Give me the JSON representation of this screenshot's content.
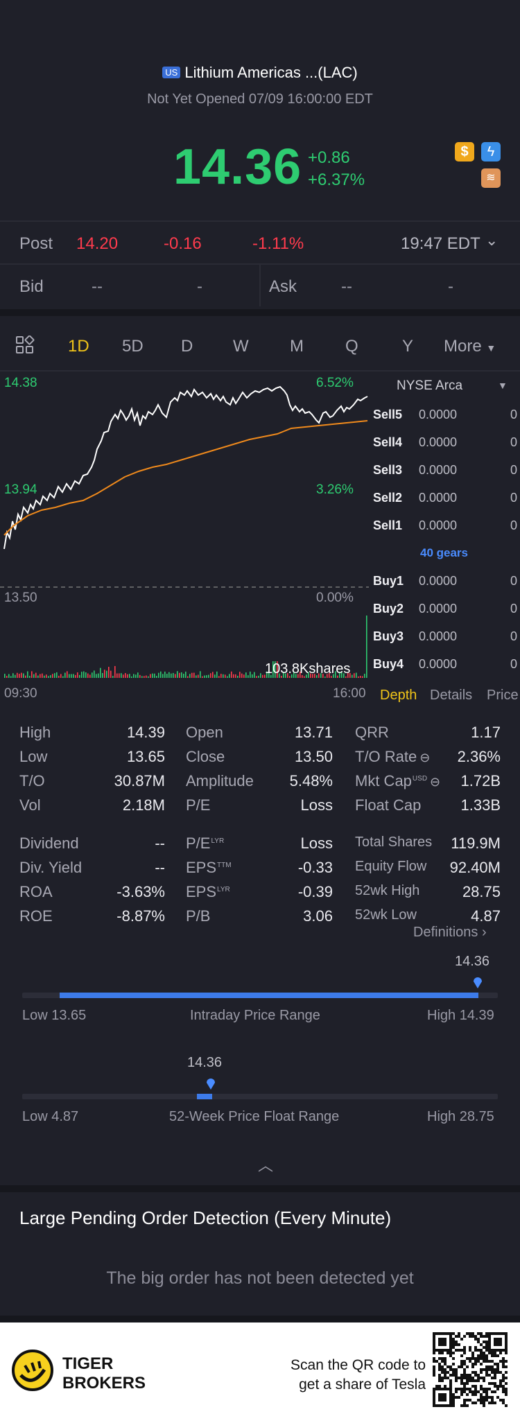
{
  "header": {
    "market_badge": "US",
    "stock_name": "Lithium Americas ...(LAC)",
    "status": "Not Yet Opened 07/09 16:00:00 EDT",
    "price": "14.36",
    "change": "+0.86",
    "change_pct": "+6.37%"
  },
  "post": {
    "label": "Post",
    "price": "14.20",
    "change": "-0.16",
    "change_pct": "-1.11%",
    "time": "19:47 EDT"
  },
  "bidask": {
    "bid_label": "Bid",
    "bid_price": "--",
    "bid_size": "-",
    "ask_label": "Ask",
    "ask_price": "--",
    "ask_size": "-"
  },
  "timeframes": [
    "1D",
    "5D",
    "D",
    "W",
    "M",
    "Q",
    "Y"
  ],
  "timeframe_more": "More",
  "chart": {
    "y_top": "14.38",
    "y_mid": "13.94",
    "y_base": "13.50",
    "pct_top": "6.52%",
    "pct_mid": "3.26%",
    "pct_base": "0.00%",
    "volume_label": "103.8Kshares",
    "x_start": "09:30",
    "x_end": "16:00"
  },
  "orderbook": {
    "exchange": "NYSE Arca",
    "gears": "40 gears",
    "sells": [
      {
        "name": "Sell5",
        "price": "0.0000",
        "vol": "0"
      },
      {
        "name": "Sell4",
        "price": "0.0000",
        "vol": "0"
      },
      {
        "name": "Sell3",
        "price": "0.0000",
        "vol": "0"
      },
      {
        "name": "Sell2",
        "price": "0.0000",
        "vol": "0"
      },
      {
        "name": "Sell1",
        "price": "0.0000",
        "vol": "0"
      }
    ],
    "buys": [
      {
        "name": "Buy1",
        "price": "0.0000",
        "vol": "0"
      },
      {
        "name": "Buy2",
        "price": "0.0000",
        "vol": "0"
      },
      {
        "name": "Buy3",
        "price": "0.0000",
        "vol": "0"
      },
      {
        "name": "Buy4",
        "price": "0.0000",
        "vol": "0"
      }
    ],
    "tabs": [
      "Depth",
      "Details",
      "Price"
    ]
  },
  "stats": {
    "col1": [
      {
        "label": "High",
        "value": "14.39"
      },
      {
        "label": "Low",
        "value": "13.65"
      },
      {
        "label": "T/O",
        "value": "30.87M"
      },
      {
        "label": "Vol",
        "value": "2.18M"
      },
      {
        "label": "Dividend",
        "value": "--"
      },
      {
        "label": "Div. Yield",
        "value": "--"
      },
      {
        "label": "ROA",
        "value": "-3.63%"
      },
      {
        "label": "ROE",
        "value": "-8.87%"
      }
    ],
    "col2": [
      {
        "label": "Open",
        "value": "13.71"
      },
      {
        "label": "Close",
        "value": "13.50"
      },
      {
        "label": "Amplitude",
        "value": "5.48%"
      },
      {
        "label": "P/E",
        "value": "Loss"
      },
      {
        "label": "P/E",
        "sup": "LYR",
        "value": "Loss"
      },
      {
        "label": "EPS",
        "sup": "TTM",
        "value": "-0.33"
      },
      {
        "label": "EPS",
        "sup": "LYR",
        "value": "-0.39"
      },
      {
        "label": "P/B",
        "value": "3.06"
      }
    ],
    "col3": [
      {
        "label": "QRR",
        "value": "1.17"
      },
      {
        "label": "T/O Rate",
        "value": "2.36%"
      },
      {
        "label": "Mkt Cap",
        "sup": "USD",
        "value": "1.72B"
      },
      {
        "label": "Float Cap",
        "value": "1.33B"
      },
      {
        "label": "Total Shares",
        "value": "119.9M"
      },
      {
        "label": "Equity Flow",
        "value": "92.40M"
      },
      {
        "label": "52wk High",
        "value": "28.75"
      },
      {
        "label": "52wk Low",
        "value": "4.87"
      }
    ],
    "definitions": "Definitions"
  },
  "ranges": {
    "intraday": {
      "current": "14.36",
      "low_label": "Low 13.65",
      "title": "Intraday Price Range",
      "high_label": "High 14.39",
      "fraction": 0.95
    },
    "week52": {
      "current": "14.36",
      "low_label": "Low 4.87",
      "title": "52-Week Price Float Range",
      "high_label": "High 28.75",
      "fraction": 0.4
    }
  },
  "pending": {
    "title": "Large Pending Order Detection (Every Minute)",
    "empty": "The big order has not been detected yet"
  },
  "footer": {
    "brand_line1": "TIGER",
    "brand_line2": "BROKERS",
    "scan_line1": "Scan the QR code to",
    "scan_line2": "get a share of Tesla"
  },
  "colors": {
    "up": "#2ecc71",
    "down": "#ff3b4d",
    "accent": "#f0c419",
    "blue": "#4a8cff",
    "avg_line": "#f08a1c"
  }
}
